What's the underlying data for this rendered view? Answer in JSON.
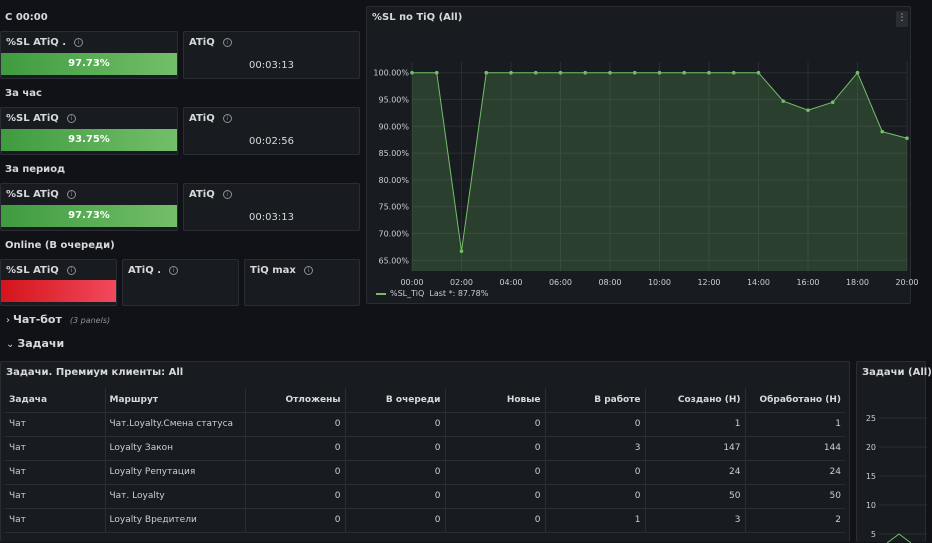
{
  "rows": {
    "since_midnight": "С 00:00",
    "hour": "За час",
    "period": "За период",
    "online": "Online (В очереди)"
  },
  "stats": {
    "sl_label_dot": "%SL ATiQ .",
    "sl_label": "%SL ATiQ",
    "atiq_label": "ATiQ",
    "atiq_label_dot": "ATiQ .",
    "tiq_max_label": "TiQ max",
    "since_midnight": {
      "sl": "97.73%",
      "atiq": "00:03:13",
      "sl_fill": 1.0
    },
    "hour": {
      "sl": "93.75%",
      "atiq": "00:02:56",
      "sl_fill": 1.0
    },
    "period": {
      "sl": "97.73%",
      "atiq": "00:03:13",
      "sl_fill": 1.0
    },
    "online": {
      "sl_fill": 1.0
    }
  },
  "chart_panel": {
    "title": "%SL по TiQ (All)",
    "menu_icon": "vertical-dots-icon",
    "legend_name": "%SL_TiQ",
    "legend_last": "Last *: 87.78%"
  },
  "chart_data": {
    "type": "area",
    "title": "%SL по TiQ (All)",
    "x": [
      "00:00",
      "01:00",
      "02:00",
      "03:00",
      "04:00",
      "05:00",
      "06:00",
      "07:00",
      "08:00",
      "09:00",
      "10:00",
      "11:00",
      "12:00",
      "13:00",
      "14:00",
      "15:00",
      "16:00",
      "17:00",
      "18:00",
      "19:00",
      "20:00"
    ],
    "x_ticks": [
      "00:00",
      "02:00",
      "04:00",
      "06:00",
      "08:00",
      "10:00",
      "12:00",
      "14:00",
      "16:00",
      "18:00",
      "20:00"
    ],
    "series": [
      {
        "name": "%SL_TiQ",
        "values": [
          100,
          100,
          66.7,
          100,
          100,
          100,
          100,
          100,
          100,
          100,
          100,
          100,
          100,
          100,
          100,
          94.7,
          93,
          94.5,
          100,
          89,
          87.78
        ],
        "color": "#73bf69"
      }
    ],
    "y_ticks": [
      "100.00%",
      "95.00%",
      "90.00%",
      "85.00%",
      "80.00%",
      "75.00%",
      "70.00%",
      "65.00%"
    ],
    "y_tick_values": [
      100,
      95,
      90,
      85,
      80,
      75,
      70,
      65
    ],
    "ylim": [
      63,
      102
    ],
    "grid": true,
    "legend": "bottom-left"
  },
  "chatbot": {
    "title": "Чат-бот",
    "panels": "(3 panels)"
  },
  "tasks": {
    "title": "Задачи"
  },
  "table": {
    "title": "Задачи. Премиум клиенты: All",
    "columns": [
      "Задача",
      "Маршрут",
      "Отложены",
      "В очереди",
      "Новые",
      "В работе",
      "Создано (Н)",
      "Обработано (Н)"
    ],
    "rows": [
      [
        "Чат",
        "Чат.Loyalty.Смена статуса",
        "0",
        "0",
        "0",
        "0",
        "1",
        "1"
      ],
      [
        "Чат",
        "Loyalty Закон",
        "0",
        "0",
        "0",
        "3",
        "147",
        "144"
      ],
      [
        "Чат",
        "Loyalty Репутация",
        "0",
        "0",
        "0",
        "0",
        "24",
        "24"
      ],
      [
        "Чат",
        "Чат. Loyalty",
        "0",
        "0",
        "0",
        "0",
        "50",
        "50"
      ],
      [
        "Чат",
        "Loyalty Вредители",
        "0",
        "0",
        "0",
        "1",
        "3",
        "2"
      ]
    ]
  },
  "right_panel": {
    "title": "Задачи (All)",
    "y_ticks": [
      "25",
      "20",
      "15",
      "10",
      "5"
    ]
  }
}
